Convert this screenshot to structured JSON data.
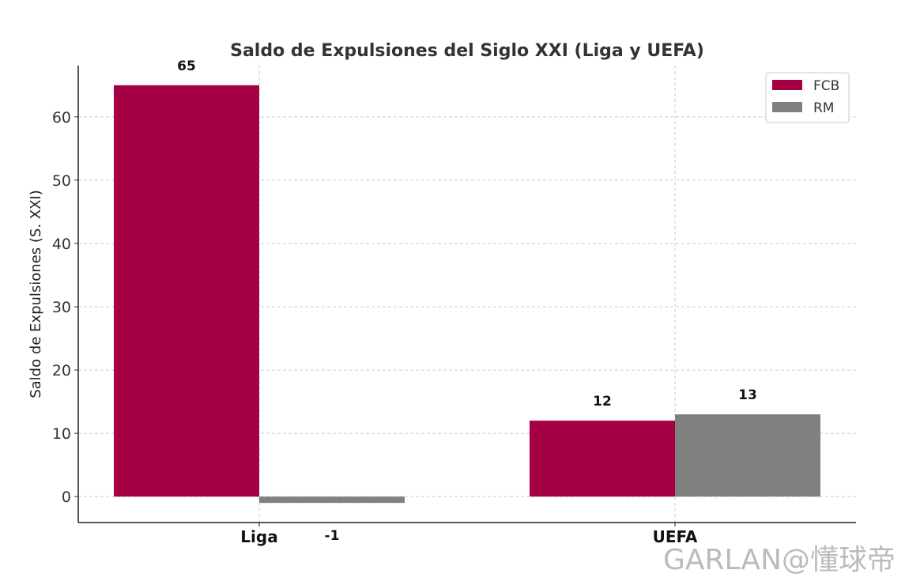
{
  "chart_data": {
    "type": "bar",
    "title": "Saldo de Expulsiones del Siglo XXI (Liga y UEFA)",
    "xlabel": "",
    "ylabel": "Saldo de Expulsiones (S. XXI)",
    "categories": [
      "Liga",
      "UEFA"
    ],
    "series": [
      {
        "name": "FCB",
        "color": "#A50044",
        "values": [
          65,
          12
        ],
        "labels": [
          "65",
          "12"
        ]
      },
      {
        "name": "RM",
        "color": "#808080",
        "values": [
          -1,
          13
        ],
        "labels": [
          "-1",
          "13"
        ]
      }
    ],
    "ylim": [
      -4.1,
      68.1
    ],
    "yticks": [
      0,
      10,
      20,
      30,
      40,
      50,
      60
    ],
    "ytick_labels": [
      "0",
      "10",
      "20",
      "30",
      "40",
      "50",
      "60"
    ],
    "grid": true,
    "legend_position": "top-right"
  },
  "watermark": "GARLAN@懂球帝"
}
